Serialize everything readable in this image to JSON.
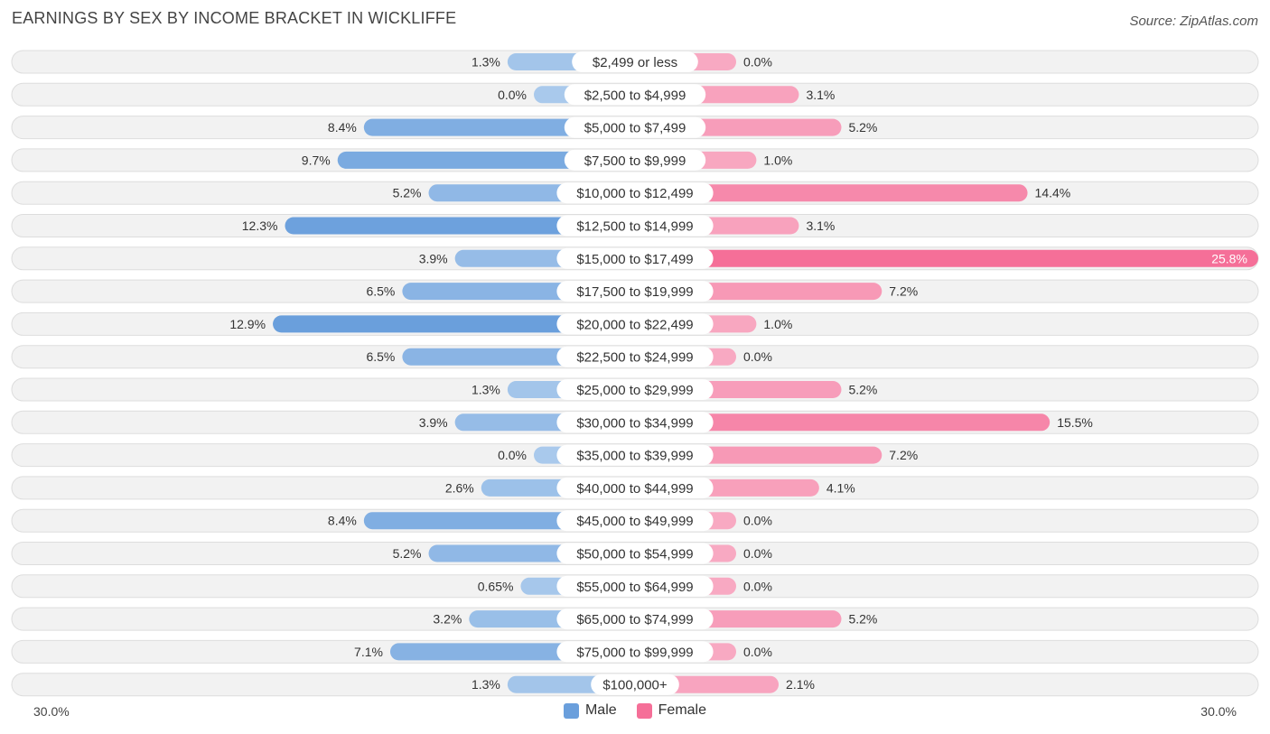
{
  "header": {
    "title": "EARNINGS BY SEX BY INCOME BRACKET IN WICKLIFFE",
    "source": "Source: ZipAtlas.com"
  },
  "colors": {
    "male_dark": "#6a9fdc",
    "male_light": "#a9c9ec",
    "female_dark": "#f56f98",
    "female_light": "#f8a9c2"
  },
  "chart_data": {
    "type": "bar",
    "orientation": "horizontal-diverging",
    "title": "EARNINGS BY SEX BY INCOME BRACKET IN WICKLIFFE",
    "categories": [
      "$2,499 or less",
      "$2,500 to $4,999",
      "$5,000 to $7,499",
      "$7,500 to $9,999",
      "$10,000 to $12,499",
      "$12,500 to $14,999",
      "$15,000 to $17,499",
      "$17,500 to $19,999",
      "$20,000 to $22,499",
      "$22,500 to $24,999",
      "$25,000 to $29,999",
      "$30,000 to $34,999",
      "$35,000 to $39,999",
      "$40,000 to $44,999",
      "$45,000 to $49,999",
      "$50,000 to $54,999",
      "$55,000 to $64,999",
      "$65,000 to $74,999",
      "$75,000 to $99,999",
      "$100,000+"
    ],
    "series": [
      {
        "name": "Male",
        "values": [
          1.3,
          0.0,
          8.4,
          9.7,
          5.2,
          12.3,
          3.9,
          6.5,
          12.9,
          6.5,
          1.3,
          3.9,
          0.0,
          2.6,
          8.4,
          5.2,
          0.65,
          3.2,
          7.1,
          1.3
        ],
        "labels": [
          "1.3%",
          "0.0%",
          "8.4%",
          "9.7%",
          "5.2%",
          "12.3%",
          "3.9%",
          "6.5%",
          "12.9%",
          "6.5%",
          "1.3%",
          "3.9%",
          "0.0%",
          "2.6%",
          "8.4%",
          "5.2%",
          "0.65%",
          "3.2%",
          "7.1%",
          "1.3%"
        ]
      },
      {
        "name": "Female",
        "values": [
          0.0,
          3.1,
          5.2,
          1.0,
          14.4,
          3.1,
          25.8,
          7.2,
          1.0,
          0.0,
          5.2,
          15.5,
          7.2,
          4.1,
          0.0,
          0.0,
          0.0,
          5.2,
          0.0,
          2.1
        ],
        "labels": [
          "0.0%",
          "3.1%",
          "5.2%",
          "1.0%",
          "14.4%",
          "3.1%",
          "25.8%",
          "7.2%",
          "1.0%",
          "0.0%",
          "5.2%",
          "15.5%",
          "7.2%",
          "4.1%",
          "0.0%",
          "0.0%",
          "0.0%",
          "5.2%",
          "0.0%",
          "2.1%"
        ]
      }
    ],
    "xlim": [
      -30,
      30
    ],
    "axis_labels": {
      "left": "30.0%",
      "right": "30.0%"
    },
    "legend": [
      "Male",
      "Female"
    ],
    "legend_position": "bottom-center"
  }
}
